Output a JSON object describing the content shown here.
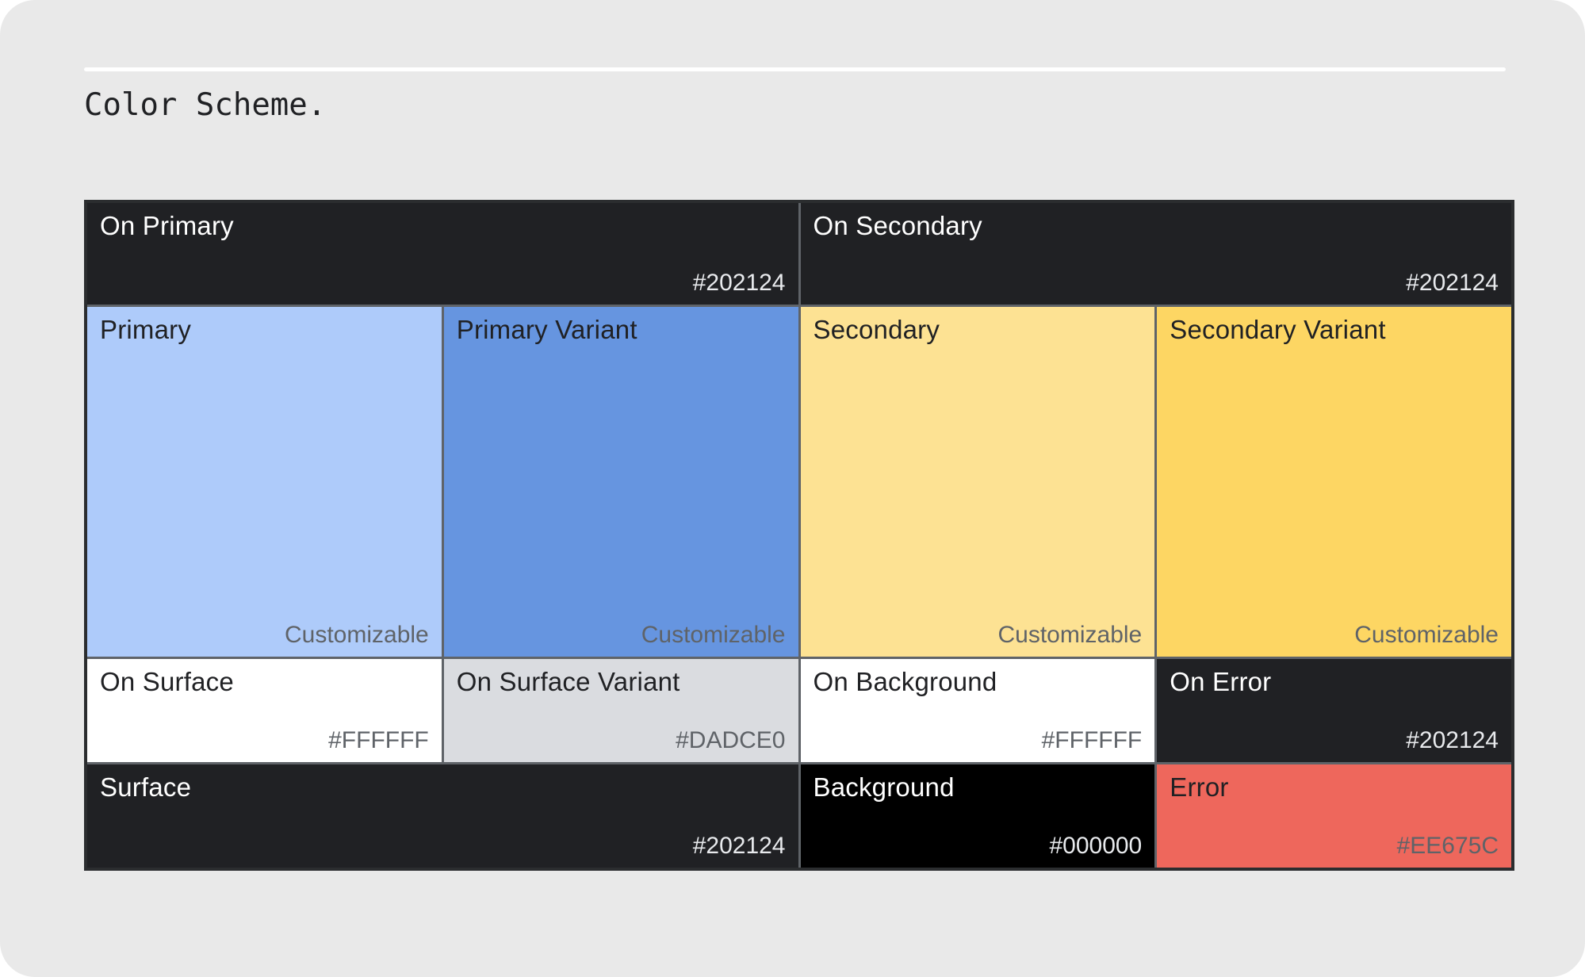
{
  "header": {
    "title": "Color Scheme."
  },
  "palette": {
    "page_bg": "#E9E9E9",
    "divider": "#FFFFFF",
    "grid_border": "#5F6368",
    "grid_outer_border": "#2B2D2F",
    "dark_text": "#202124",
    "light_text": "#FFFFFF",
    "muted_on_light": "#5F6368",
    "muted_on_dark": "#E8EAED"
  },
  "grid": {
    "cells": {
      "on_primary": {
        "label": "On Primary",
        "value": "#202124",
        "bg": "#202124"
      },
      "on_secondary": {
        "label": "On Secondary",
        "value": "#202124",
        "bg": "#202124"
      },
      "primary": {
        "label": "Primary",
        "value": "Customizable",
        "bg": "#AECBFA"
      },
      "primary_variant": {
        "label": "Primary Variant",
        "value": "Customizable",
        "bg": "#6695E0"
      },
      "secondary": {
        "label": "Secondary",
        "value": "Customizable",
        "bg": "#FDE293"
      },
      "secondary_variant": {
        "label": "Secondary Variant",
        "value": "Customizable",
        "bg": "#FDD663"
      },
      "on_surface": {
        "label": "On Surface",
        "value": "#FFFFFF",
        "bg": "#FFFFFF"
      },
      "on_surface_variant": {
        "label": "On Surface Variant",
        "value": "#DADCE0",
        "bg": "#DADCE0"
      },
      "on_background": {
        "label": "On Background",
        "value": "#FFFFFF",
        "bg": "#FFFFFF"
      },
      "on_error": {
        "label": "On Error",
        "value": "#202124",
        "bg": "#202124"
      },
      "surface": {
        "label": "Surface",
        "value": "#202124",
        "bg": "#202124"
      },
      "background": {
        "label": "Background",
        "value": "#000000",
        "bg": "#000000"
      },
      "error": {
        "label": "Error",
        "value": "#EE675C",
        "bg": "#EE675C"
      }
    }
  }
}
